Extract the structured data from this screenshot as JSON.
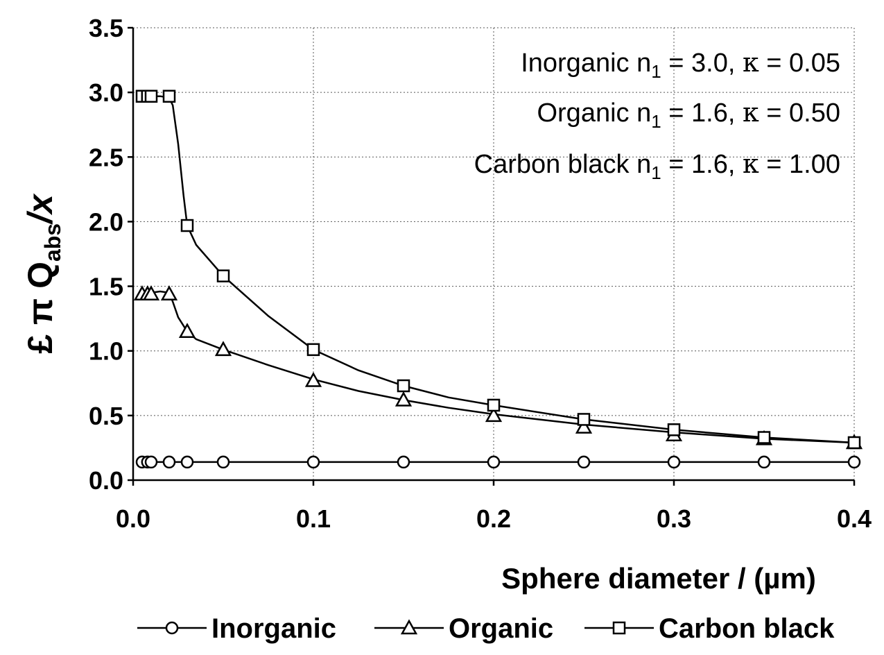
{
  "chart_data": {
    "type": "line",
    "title": "",
    "xlabel": "Sphere diameter / (µm)",
    "ylabel": "£ π Q",
    "ylabel_sub": "abs",
    "ylabel_suffix": "/x",
    "xlim": [
      0.0,
      0.4
    ],
    "ylim": [
      0.0,
      3.5
    ],
    "xticks": [
      0.0,
      0.1,
      0.2,
      0.3,
      0.4
    ],
    "xtick_labels": [
      "0.0",
      "0.1",
      "0.2",
      "0.3",
      "0.4"
    ],
    "yticks": [
      0.0,
      0.5,
      1.0,
      1.5,
      2.0,
      2.5,
      3.0,
      3.5
    ],
    "ytick_labels": [
      "0.0",
      "0.5",
      "1.0",
      "1.5",
      "2.0",
      "2.5",
      "3.0",
      "3.5"
    ],
    "grid": true,
    "legend_position": "bottom",
    "annotations": [
      {
        "name": "Inorganic",
        "n_label": "n",
        "n_sub": "1",
        "n_value": "3.0",
        "kappa_symbol": "κ",
        "kappa_value": "0.05"
      },
      {
        "name": "Organic",
        "n_label": "n",
        "n_sub": "1",
        "n_value": "1.6",
        "kappa_symbol": "κ",
        "kappa_value": "0.50"
      },
      {
        "name": "Carbon black",
        "n_label": "n",
        "n_sub": "1",
        "n_value": "1.6",
        "kappa_symbol": "κ",
        "kappa_value": "1.00"
      }
    ],
    "series": [
      {
        "name": "Inorganic",
        "marker": "circle",
        "x": [
          0.005,
          0.008,
          0.01,
          0.02,
          0.03,
          0.05,
          0.1,
          0.15,
          0.2,
          0.25,
          0.3,
          0.35,
          0.4
        ],
        "y": [
          0.14,
          0.14,
          0.14,
          0.14,
          0.14,
          0.14,
          0.14,
          0.14,
          0.14,
          0.14,
          0.14,
          0.14,
          0.14
        ],
        "curve_x": [
          0.003,
          0.4
        ],
        "curve_y": [
          0.14,
          0.14
        ]
      },
      {
        "name": "Organic",
        "marker": "triangle",
        "x": [
          0.005,
          0.008,
          0.01,
          0.02,
          0.03,
          0.05,
          0.1,
          0.15,
          0.2,
          0.25,
          0.3,
          0.35,
          0.4
        ],
        "y": [
          1.44,
          1.44,
          1.44,
          1.44,
          1.15,
          1.01,
          0.77,
          0.62,
          0.5,
          0.41,
          0.35,
          0.32,
          0.29
        ],
        "curve_x": [
          0.003,
          0.005,
          0.008,
          0.01,
          0.015,
          0.02,
          0.022,
          0.025,
          0.03,
          0.035,
          0.05,
          0.075,
          0.1,
          0.125,
          0.15,
          0.175,
          0.2,
          0.25,
          0.3,
          0.35,
          0.4
        ],
        "curve_y": [
          1.4,
          1.43,
          1.44,
          1.45,
          1.46,
          1.45,
          1.38,
          1.26,
          1.15,
          1.09,
          1.01,
          0.89,
          0.78,
          0.69,
          0.62,
          0.56,
          0.51,
          0.43,
          0.37,
          0.32,
          0.29
        ]
      },
      {
        "name": "Carbon black",
        "marker": "square",
        "x": [
          0.005,
          0.008,
          0.01,
          0.02,
          0.03,
          0.05,
          0.1,
          0.15,
          0.2,
          0.25,
          0.3,
          0.35,
          0.4
        ],
        "y": [
          2.97,
          2.97,
          2.97,
          2.97,
          1.97,
          1.58,
          1.01,
          0.73,
          0.58,
          0.47,
          0.39,
          0.33,
          0.29
        ],
        "curve_x": [
          0.003,
          0.005,
          0.008,
          0.01,
          0.015,
          0.02,
          0.022,
          0.025,
          0.028,
          0.03,
          0.035,
          0.05,
          0.075,
          0.1,
          0.125,
          0.15,
          0.175,
          0.2,
          0.25,
          0.3,
          0.35,
          0.4
        ],
        "curve_y": [
          2.95,
          2.97,
          2.97,
          2.97,
          2.97,
          2.96,
          2.9,
          2.6,
          2.2,
          1.97,
          1.82,
          1.58,
          1.27,
          1.01,
          0.85,
          0.73,
          0.64,
          0.58,
          0.47,
          0.39,
          0.33,
          0.29
        ]
      }
    ]
  }
}
